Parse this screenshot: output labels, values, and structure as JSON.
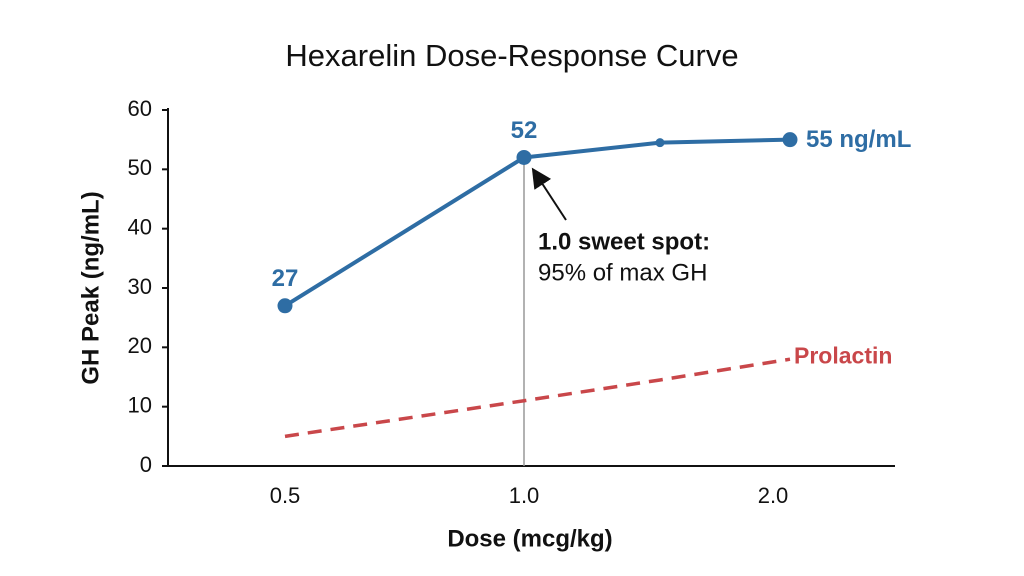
{
  "chart_data": {
    "type": "line",
    "title": "Hexarelin Dose-Response Curve",
    "x_label": "Dose (mcg/kg)",
    "y_label": "GH Peak (ng/mL)",
    "categories": [
      "0.5",
      "1.0",
      null,
      "2.0"
    ],
    "ylim": [
      0,
      60
    ],
    "yticks": [
      0,
      10,
      20,
      30,
      40,
      50,
      60
    ],
    "grid": false,
    "series": [
      {
        "color": "#2e6da4",
        "values": [
          27,
          52,
          54.5,
          55
        ],
        "value_labels": [
          "27",
          "52",
          null,
          "55 ng/mL"
        ]
      },
      {
        "name": "Prolactin",
        "color": "#c9474a",
        "values": [
          5,
          11,
          14.5,
          18
        ],
        "dashed": true
      }
    ],
    "annotations": [
      "1.0 sweet spot:",
      "95% of max GH"
    ]
  }
}
